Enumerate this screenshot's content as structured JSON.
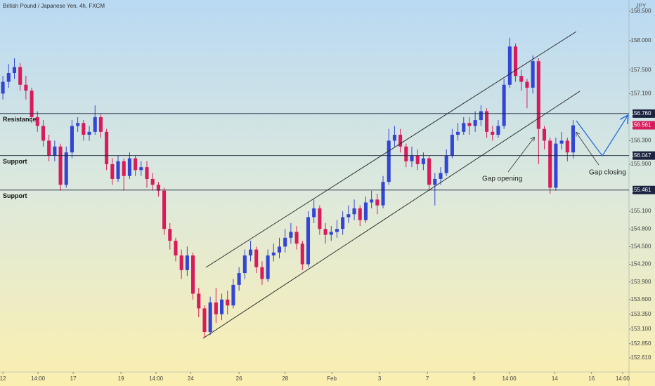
{
  "chart_data": {
    "type": "candlestick",
    "title": "British Pound / Japanese Yen, 4h, FXCM",
    "currency": "JPY",
    "up_color": "#3346d3",
    "down_color": "#d81b5a",
    "xlim": [
      -0.5,
      108.7
    ],
    "ylim": [
      152.37,
      158.69
    ],
    "xticks": [
      {
        "value": 0,
        "label": "12"
      },
      {
        "value": 6.1,
        "label": "14:00"
      },
      {
        "value": 12.2,
        "label": "17"
      },
      {
        "value": 20.5,
        "label": "19"
      },
      {
        "value": 26.6,
        "label": "14:00"
      },
      {
        "value": 32.6,
        "label": "24"
      },
      {
        "value": 41,
        "label": "26"
      },
      {
        "value": 49,
        "label": "28"
      },
      {
        "value": 57.1,
        "label": "Feb"
      },
      {
        "value": 65.4,
        "label": "3"
      },
      {
        "value": 73.7,
        "label": "7"
      },
      {
        "value": 81.8,
        "label": "9"
      },
      {
        "value": 87.9,
        "label": "14:00"
      },
      {
        "value": 95.8,
        "label": "14"
      },
      {
        "value": 102.2,
        "label": "16"
      },
      {
        "value": 107.6,
        "label": "14:00"
      }
    ],
    "yticks": [
      {
        "value": 158.5,
        "label": "158.500"
      },
      {
        "value": 158.0,
        "label": "158.000"
      },
      {
        "value": 157.5,
        "label": "157.500"
      },
      {
        "value": 157.1,
        "label": "157.100"
      },
      {
        "value": 156.3,
        "label": "156.300"
      },
      {
        "value": 155.9,
        "label": "155.900"
      },
      {
        "value": 155.1,
        "label": "155.100"
      },
      {
        "value": 154.8,
        "label": "154.800"
      },
      {
        "value": 154.5,
        "label": "154.500"
      },
      {
        "value": 154.2,
        "label": "154.200"
      },
      {
        "value": 153.9,
        "label": "153.900"
      },
      {
        "value": 153.6,
        "label": "153.600"
      },
      {
        "value": 153.35,
        "label": "153.350"
      },
      {
        "value": 153.1,
        "label": "153.100"
      },
      {
        "value": 152.85,
        "label": "152.850"
      },
      {
        "value": 152.61,
        "label": "152.610"
      }
    ],
    "levels": [
      {
        "name": "Resistance",
        "value": 156.76,
        "value_label": "156.760"
      },
      {
        "name": "Support",
        "value": 156.047,
        "value_label": "156.047"
      },
      {
        "name": "Support",
        "value": 155.461,
        "value_label": "155.461"
      }
    ],
    "last_price": {
      "value": 156.561,
      "label": "156.561"
    },
    "annotations": [
      "Gap opening",
      "Gap closing"
    ],
    "open": [
      157.1,
      157.3,
      157.45,
      157.55,
      157.25,
      157.15,
      156.7,
      156.55,
      156.3,
      156.05,
      156.2,
      155.55,
      156.1,
      156.55,
      156.6,
      156.4,
      156.45,
      156.7,
      156.45,
      155.9,
      155.65,
      155.95,
      155.7,
      156.0,
      155.8,
      155.85,
      155.65,
      155.55,
      155.45,
      154.8,
      154.6,
      154.35,
      154.1,
      154.35,
      153.7,
      153.45,
      153.05,
      153.55,
      153.35,
      153.6,
      153.5,
      153.85,
      154.05,
      154.35,
      154.45,
      154.15,
      153.95,
      154.35,
      154.4,
      154.5,
      154.65,
      154.75,
      154.55,
      154.2,
      155.0,
      155.15,
      154.8,
      154.7,
      154.75,
      154.8,
      155.0,
      155.05,
      155.15,
      154.95,
      155.25,
      155.3,
      155.2,
      155.6,
      156.3,
      156.4,
      156.2,
      155.95,
      156.05,
      155.9,
      156.0,
      155.55,
      155.65,
      155.75,
      156.05,
      156.4,
      156.45,
      156.6,
      156.55,
      156.65,
      156.8,
      156.45,
      156.4,
      156.55,
      157.25,
      157.9,
      157.4,
      157.3,
      157.2,
      157.65,
      156.5,
      156.3,
      155.5,
      156.25,
      156.3,
      156.1
    ],
    "high": [
      157.4,
      157.6,
      157.7,
      157.62,
      157.4,
      157.2,
      156.8,
      156.65,
      156.4,
      156.3,
      156.25,
      156.2,
      156.65,
      156.7,
      156.65,
      156.55,
      156.9,
      156.75,
      156.5,
      156.0,
      156.05,
      156.0,
      156.1,
      156.05,
      155.95,
      155.95,
      155.75,
      155.6,
      155.5,
      154.9,
      154.65,
      154.45,
      154.5,
      154.4,
      153.8,
      153.5,
      153.65,
      153.8,
      153.7,
      153.75,
      153.95,
      154.15,
      154.45,
      154.6,
      154.5,
      154.25,
      154.45,
      154.55,
      154.65,
      154.8,
      154.9,
      154.85,
      154.6,
      155.1,
      155.3,
      155.2,
      154.9,
      154.85,
      154.95,
      155.1,
      155.2,
      155.3,
      155.2,
      155.35,
      155.45,
      155.4,
      155.7,
      156.5,
      156.55,
      156.5,
      156.25,
      156.2,
      156.15,
      156.1,
      156.05,
      155.75,
      155.85,
      156.15,
      156.5,
      156.6,
      156.7,
      156.7,
      156.8,
      156.9,
      156.85,
      156.55,
      156.65,
      157.35,
      158.05,
      157.95,
      157.5,
      157.35,
      157.75,
      157.7,
      156.55,
      156.35,
      156.35,
      156.45,
      156.35,
      156.65
    ],
    "low": [
      157.0,
      157.2,
      157.35,
      157.15,
      157.0,
      156.6,
      156.45,
      156.2,
      155.95,
      155.95,
      155.45,
      155.5,
      156.0,
      156.45,
      156.3,
      156.3,
      156.4,
      156.35,
      155.8,
      155.55,
      155.6,
      155.45,
      155.65,
      155.7,
      155.7,
      155.5,
      155.45,
      155.35,
      154.7,
      154.45,
      154.25,
      153.95,
      154.0,
      153.6,
      153.3,
      152.95,
      153.0,
      153.2,
      153.25,
      153.35,
      153.45,
      153.75,
      153.95,
      154.25,
      154.05,
      153.85,
      153.9,
      154.25,
      154.3,
      154.4,
      154.55,
      154.45,
      154.1,
      154.15,
      154.9,
      154.7,
      154.55,
      154.6,
      154.65,
      154.7,
      154.9,
      154.95,
      154.85,
      154.9,
      155.15,
      155.05,
      155.15,
      155.55,
      156.2,
      156.1,
      155.85,
      155.85,
      155.8,
      155.8,
      155.45,
      155.2,
      155.55,
      155.7,
      156.0,
      156.3,
      156.4,
      156.4,
      156.45,
      156.55,
      156.35,
      156.3,
      156.35,
      156.5,
      157.2,
      157.3,
      157.15,
      156.85,
      157.1,
      155.9,
      156.15,
      155.4,
      155.45,
      156.15,
      155.95,
      156.0
    ],
    "close": [
      157.3,
      157.45,
      157.55,
      157.25,
      157.15,
      156.7,
      156.55,
      156.3,
      156.05,
      156.2,
      155.55,
      156.1,
      156.55,
      156.6,
      156.4,
      156.45,
      156.7,
      156.45,
      155.9,
      155.65,
      155.95,
      155.7,
      156.0,
      155.8,
      155.85,
      155.65,
      155.55,
      155.45,
      154.8,
      154.6,
      154.35,
      154.1,
      154.35,
      153.7,
      153.45,
      153.05,
      153.55,
      153.35,
      153.6,
      153.5,
      153.85,
      154.05,
      154.35,
      154.45,
      154.15,
      153.95,
      154.35,
      154.4,
      154.5,
      154.65,
      154.75,
      154.55,
      154.2,
      155.0,
      155.15,
      154.8,
      154.7,
      154.75,
      154.8,
      155.0,
      155.05,
      155.15,
      154.95,
      155.25,
      155.3,
      155.2,
      155.6,
      156.3,
      156.4,
      156.2,
      155.95,
      156.05,
      155.9,
      156.0,
      155.55,
      155.65,
      155.75,
      156.05,
      156.4,
      156.45,
      156.6,
      156.55,
      156.65,
      156.8,
      156.45,
      156.4,
      156.55,
      157.25,
      157.9,
      157.4,
      157.3,
      157.2,
      157.65,
      156.5,
      156.3,
      155.5,
      156.25,
      156.3,
      156.1,
      156.56
    ]
  }
}
